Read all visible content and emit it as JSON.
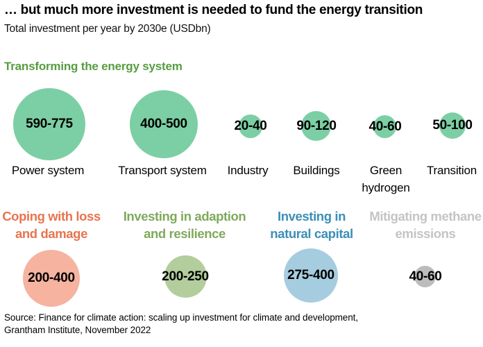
{
  "chart_data": {
    "type": "scatter",
    "variant": "bubble",
    "title": "… but much more investment is needed to fund the energy transition",
    "subtitle": "Total investment per year by 2030e (USDbn)",
    "unit": "USDbn per year by 2030e",
    "legend_position": "none",
    "grid": false,
    "groups": [
      {
        "name": "Transforming the energy system",
        "header_color": "#579c40",
        "bubble_color": "#7ccfa4",
        "items": [
          {
            "label": "Power system",
            "range": "590-775",
            "min": 590,
            "max": 775
          },
          {
            "label": "Transport system",
            "range": "400-500",
            "min": 400,
            "max": 500
          },
          {
            "label": "Industry",
            "range": "20-40",
            "min": 20,
            "max": 40
          },
          {
            "label": "Buildings",
            "range": "90-120",
            "min": 90,
            "max": 120
          },
          {
            "label": "Green hydrogen",
            "label_lines": [
              "Green",
              "hydrogen"
            ],
            "range": "40-60",
            "min": 40,
            "max": 60
          },
          {
            "label": "Transition",
            "range": "50-100",
            "min": 50,
            "max": 100
          }
        ]
      },
      {
        "name": "Coping with loss and damage",
        "name_lines": [
          "Coping with loss",
          "and damage"
        ],
        "header_color": "#e8744e",
        "bubble_color": "#f5b3a0",
        "items": [
          {
            "label": "",
            "range": "200-400",
            "min": 200,
            "max": 400
          }
        ]
      },
      {
        "name": "Investing in adaption and resilience",
        "name_lines": [
          "Investing in adaption",
          "and resilience"
        ],
        "header_color": "#7fa95c",
        "bubble_color": "#b3cd9d",
        "items": [
          {
            "label": "",
            "range": "200-250",
            "min": 200,
            "max": 250
          }
        ]
      },
      {
        "name": "Investing in natural capital",
        "name_lines": [
          "Investing in",
          "natural capital"
        ],
        "header_color": "#3a8fb7",
        "bubble_color": "#a6cddf",
        "items": [
          {
            "label": "",
            "range": "275-400",
            "min": 275,
            "max": 400
          }
        ]
      },
      {
        "name": "Mitigating methane emissions",
        "name_lines": [
          "Mitigating methane",
          "emissions"
        ],
        "header_color": "#c4c4c4",
        "bubble_color": "#bcbcbc",
        "items": [
          {
            "label": "",
            "range": "40-60",
            "min": 40,
            "max": 60
          }
        ]
      }
    ],
    "source_lines": [
      "Source: Finance for climate action: scaling up investment for climate and development,",
      "Grantham Institute, November 2022"
    ]
  }
}
